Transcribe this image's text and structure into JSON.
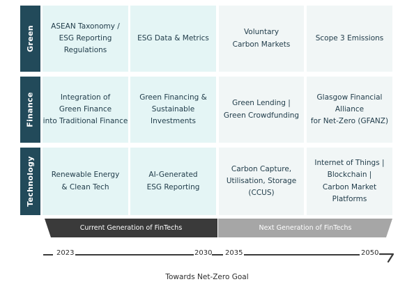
{
  "rows": [
    {
      "label": "Green",
      "cells": [
        "ASEAN Taxonomy /\nESG Reporting Regulations",
        "ESG Data & Metrics",
        "Voluntary\nCarbon Markets",
        "Scope 3 Emissions"
      ]
    },
    {
      "label": "Finance",
      "cells": [
        "Integration of\nGreen Finance\ninto Traditional Finance",
        "Green Financing &\nSustainable Investments",
        "Green Lending |\nGreen Crowdfunding",
        "Glasgow Financial Alliance\nfor Net-Zero (GFANZ)"
      ]
    },
    {
      "label": "Technology",
      "cells": [
        "Renewable Energy\n& Clean Tech",
        "AI-Generated\nESG Reporting",
        "Carbon Capture,\nUtilisation, Storage (CCUS)",
        "Internet of Things |\nBlockchain |\nCarbon Market Platforms"
      ]
    }
  ],
  "bands": {
    "current": "Current Generation of FinTechs",
    "next": "Next Generation of FinTechs"
  },
  "timeline": {
    "years": [
      "2023",
      "2030",
      "2035",
      "2050"
    ]
  },
  "goal": "Towards Net-Zero Goal",
  "colors": {
    "label_bg": "#224a5a",
    "current_cell": "#e4f5f5",
    "next_cell": "#f1f6f6",
    "current_band": "#3a3a3a",
    "next_band": "#a6a6a6"
  }
}
